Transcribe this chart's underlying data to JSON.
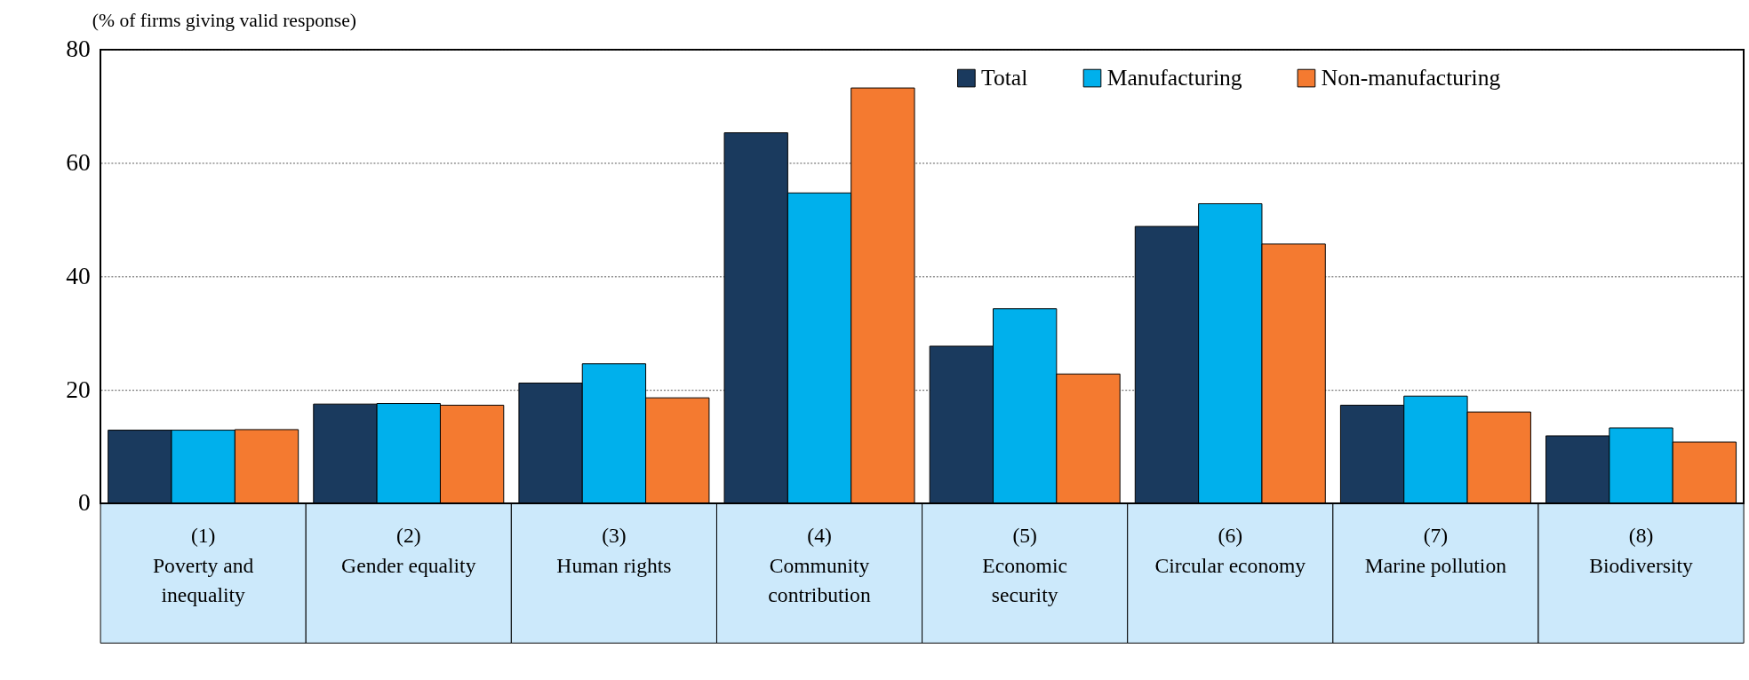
{
  "chart_data": {
    "type": "bar",
    "ylabel": "(% of firms giving valid response)",
    "categories": [
      "(1)\nPoverty and\ninequality",
      "(2)\nGender equality",
      "(3)\nHuman rights",
      "(4)\nCommunity\ncontribution",
      "(5)\nEconomic\nsecurity",
      "(6)\nCircular economy",
      "(7)\nMarine pollution",
      "(8)\nBiodiversity"
    ],
    "series": [
      {
        "name": "Total",
        "color": "#1a3a5e",
        "values": [
          12.9,
          17.5,
          21.2,
          65.3,
          27.7,
          48.8,
          17.3,
          11.9
        ]
      },
      {
        "name": "Manufacturing",
        "color": "#00b0ec",
        "values": [
          12.9,
          17.6,
          24.6,
          54.7,
          34.3,
          52.8,
          18.9,
          13.3
        ]
      },
      {
        "name": "Non-manufacturing",
        "color": "#f47a30",
        "values": [
          13.0,
          17.3,
          18.6,
          73.2,
          22.8,
          45.7,
          16.1,
          10.8
        ]
      }
    ],
    "ylim": [
      0,
      80
    ],
    "yticks": [
      0,
      20,
      40,
      60,
      80
    ],
    "grid": "y",
    "legend": "top right"
  }
}
